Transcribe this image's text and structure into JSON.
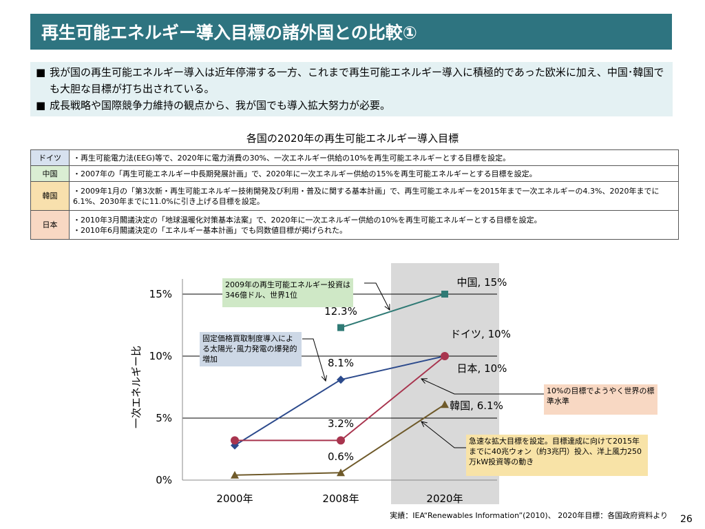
{
  "title": "再生可能エネルギー導入目標の諸外国との比較①",
  "bullets": [
    {
      "marker": "■",
      "text": "我が国の再生可能エネルギー導入は近年停滞する一方、これまで再生可能エネルギー導入に積極的であった欧米に加え、中国･韓国でも大胆な目標が打ち出されている。"
    },
    {
      "marker": "■",
      "text": "成長戦略や国際競争力維持の観点から、我が国でも導入拡大努力が必要。"
    }
  ],
  "table": {
    "title": "各国の2020年の再生可能エネルギー導入目標",
    "rows": [
      {
        "country": "ドイツ",
        "text": "・再生可能電力法(EEG)等で、2020年に電力消費の30%、一次エネルギー供給の10%を再生可能エネルギーとする目標を設定。",
        "color": "#d7e1ef"
      },
      {
        "country": "中国",
        "text": "・2007年の「再生可能エネルギー中長期発展計画」で、2020年に一次エネルギー供給の15%を再生可能エネルギーとする目標を設定。",
        "color": "#daeed3"
      },
      {
        "country": "韓国",
        "text": "・2009年1月の「第3次新・再生可能エネルギー技術開発及び利用・普及に関する基本計画」で、再生可能エネルギーを2015年まで一次エネルギーの4.3%、2020年までに6.1%、2030年までに11.0%に引き上げる目標を設定。",
        "color": "#f8e0ad"
      },
      {
        "country": "日本",
        "text": "・2010年3月閣議決定の「地球温暖化対策基本法案」で、2020年に一次エネルギー供給の10%を再生可能エネルギーとする目標を設定。\n・2010年6月閣議決定の「エネルギー基本計画」でも同数値目標が掲げられた。",
        "color": "#f8d8c3"
      }
    ]
  },
  "chart_data": {
    "type": "line",
    "ylabel": "一次エネルギー比",
    "ylim": [
      0,
      15
    ],
    "yticks": [
      "0%",
      "5%",
      "10%",
      "15%"
    ],
    "categories": [
      "2000年",
      "2008年",
      "2020年"
    ],
    "grid": true,
    "highlight_category": "2020年",
    "series": [
      {
        "name": "中国",
        "color": "#2f7a75",
        "marker": "square",
        "points": [
          {
            "x": "2008年",
            "y": 12.3
          },
          {
            "x": "2020年",
            "y": 15
          }
        ],
        "end_label": "中国, 15%",
        "data_labels": [
          {
            "x": "2008年",
            "text": "12.3%"
          }
        ]
      },
      {
        "name": "ドイツ",
        "color": "#2c4a8c",
        "marker": "diamond",
        "points": [
          {
            "x": "2000年",
            "y": 2.8
          },
          {
            "x": "2008年",
            "y": 8.1
          },
          {
            "x": "2020年",
            "y": 10
          }
        ],
        "end_label": "ドイツ, 10%",
        "data_labels": [
          {
            "x": "2008年",
            "text": "8.1%"
          }
        ]
      },
      {
        "name": "日本",
        "color": "#a8344e",
        "marker": "circle",
        "points": [
          {
            "x": "2000年",
            "y": 3.2
          },
          {
            "x": "2008年",
            "y": 3.2
          },
          {
            "x": "2020年",
            "y": 10
          }
        ],
        "end_label": "日本, 10%",
        "data_labels": [
          {
            "x": "2008年",
            "text": "3.2%"
          }
        ]
      },
      {
        "name": "韓国",
        "color": "#6f5a2a",
        "marker": "triangle",
        "points": [
          {
            "x": "2000年",
            "y": 0.4
          },
          {
            "x": "2008年",
            "y": 0.6
          },
          {
            "x": "2020年",
            "y": 6.1
          }
        ],
        "end_label": "韓国, 6.1%",
        "data_labels": [
          {
            "x": "2008年",
            "text": "0.6%"
          }
        ]
      }
    ],
    "annotations": {
      "invest": "2009年の再生可能エネルギー投資は346億ドル、世界1位",
      "fit": "固定価格買取制度導入による太陽光･風力発電の爆発的増加",
      "standard": "10%の目標でようやく世界の標準水準",
      "korea": "急速な拡大目標を設定。目標達成に向けて2015年までに40兆ウォン（約3兆円）投入、洋上風力250万kW投資等の動き"
    }
  },
  "source": "実績：IEA“Renewables Information”(2010)、 2020年目標：各国政府資料より",
  "page_number": "26"
}
